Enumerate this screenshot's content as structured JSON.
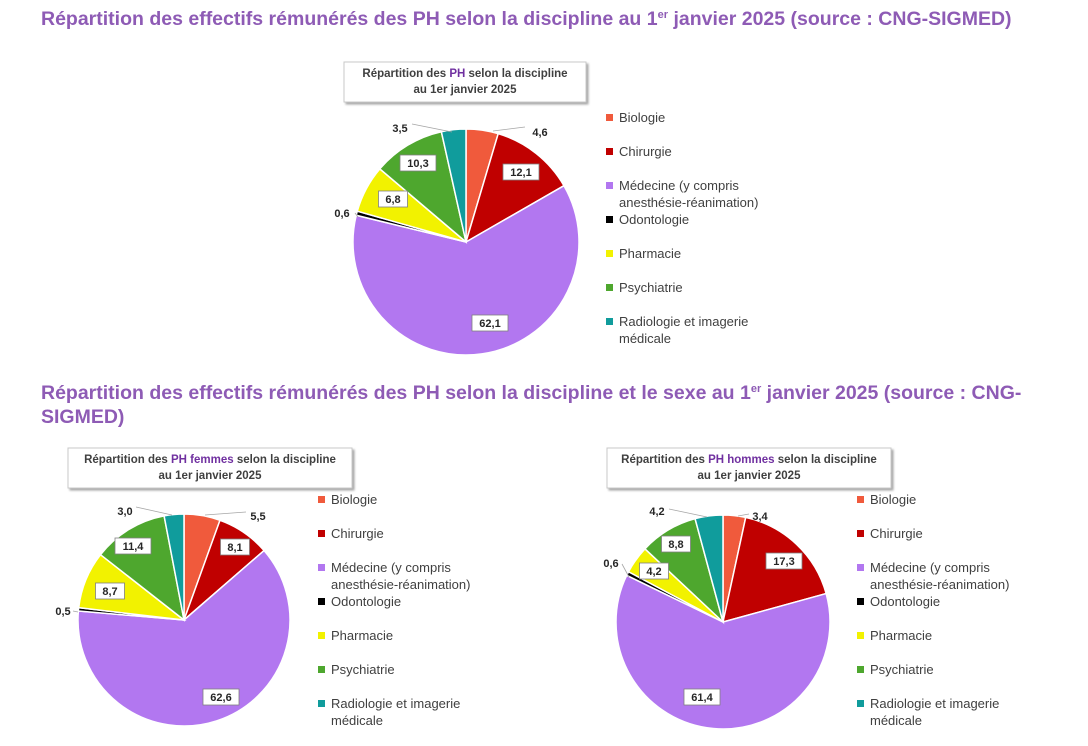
{
  "headings": [
    {
      "main": "Répartition des effectifs rémunérés des PH selon la discipline au 1",
      "sup": "er",
      "rest": " janvier 2025 (source : CNG-SIGMED)"
    },
    {
      "main": "Répartition des effectifs rémunérés des PH selon la discipline et le sexe au 1",
      "sup": "er",
      "rest": " janvier 2025 (source : CNG-SIGMED)"
    }
  ],
  "colors": {
    "heading": "#8e5bb5",
    "Biologie": "#f05a3c",
    "Chirurgie": "#c00000",
    "Médecine": "#b277f0",
    "Odontologie": "#000000",
    "Pharmacie": "#f2f200",
    "Psychiatrie": "#4ea72e",
    "Radiologie": "#109c9c"
  },
  "legend": [
    {
      "lines": [
        "Biologie"
      ],
      "color_key": "Biologie"
    },
    {
      "lines": [
        "Chirurgie"
      ],
      "color_key": "Chirurgie"
    },
    {
      "lines": [
        "Médecine (y compris",
        "anesthésie-réanimation)"
      ],
      "color_key": "Médecine"
    },
    {
      "lines": [
        "Odontologie"
      ],
      "color_key": "Odontologie"
    },
    {
      "lines": [
        "Pharmacie"
      ],
      "color_key": "Pharmacie"
    },
    {
      "lines": [
        "Psychiatrie"
      ],
      "color_key": "Psychiatrie"
    },
    {
      "lines": [
        "Radiologie et imagerie",
        "médicale"
      ],
      "color_key": "Radiologie"
    }
  ],
  "chart_data": [
    {
      "type": "pie",
      "title_parts": [
        "Répartition des ",
        "PH",
        " selon la discipline"
      ],
      "title_line2": "au 1er janvier 2025",
      "categories": [
        "Biologie",
        "Chirurgie",
        "Médecine (y compris anesthésie-réanimation)",
        "Odontologie",
        "Pharmacie",
        "Psychiatrie",
        "Radiologie et imagerie médicale"
      ],
      "values": [
        4.6,
        12.1,
        62.1,
        0.6,
        6.8,
        10.3,
        3.5
      ],
      "labels": [
        "4,6",
        "12,1",
        "62,1",
        "0,6",
        "6,8",
        "10,3",
        "3,5"
      ],
      "legend_position": "right"
    },
    {
      "type": "pie",
      "title_parts": [
        "Répartition des ",
        "PH femmes",
        " selon la discipline"
      ],
      "title_line2": "au 1er janvier 2025",
      "categories": [
        "Biologie",
        "Chirurgie",
        "Médecine (y compris anesthésie-réanimation)",
        "Odontologie",
        "Pharmacie",
        "Psychiatrie",
        "Radiologie et imagerie médicale"
      ],
      "values": [
        5.5,
        8.1,
        62.6,
        0.5,
        8.7,
        11.4,
        3.0
      ],
      "labels": [
        "5,5",
        "8,1",
        "62,6",
        "0,5",
        "8,7",
        "11,4",
        "3,0"
      ],
      "legend_position": "right"
    },
    {
      "type": "pie",
      "title_parts": [
        "Répartition des ",
        "PH hommes",
        " selon la discipline"
      ],
      "title_line2": "au 1er janvier 2025",
      "categories": [
        "Biologie",
        "Chirurgie",
        "Médecine (y compris anesthésie-réanimation)",
        "Odontologie",
        "Pharmacie",
        "Psychiatrie",
        "Radiologie et imagerie médicale"
      ],
      "values": [
        3.4,
        17.3,
        61.4,
        0.6,
        4.2,
        8.8,
        4.2
      ],
      "labels": [
        "3,4",
        "17,3",
        "61,4",
        "0,6",
        "4,2",
        "8,8",
        "4,2"
      ],
      "legend_position": "right"
    }
  ]
}
